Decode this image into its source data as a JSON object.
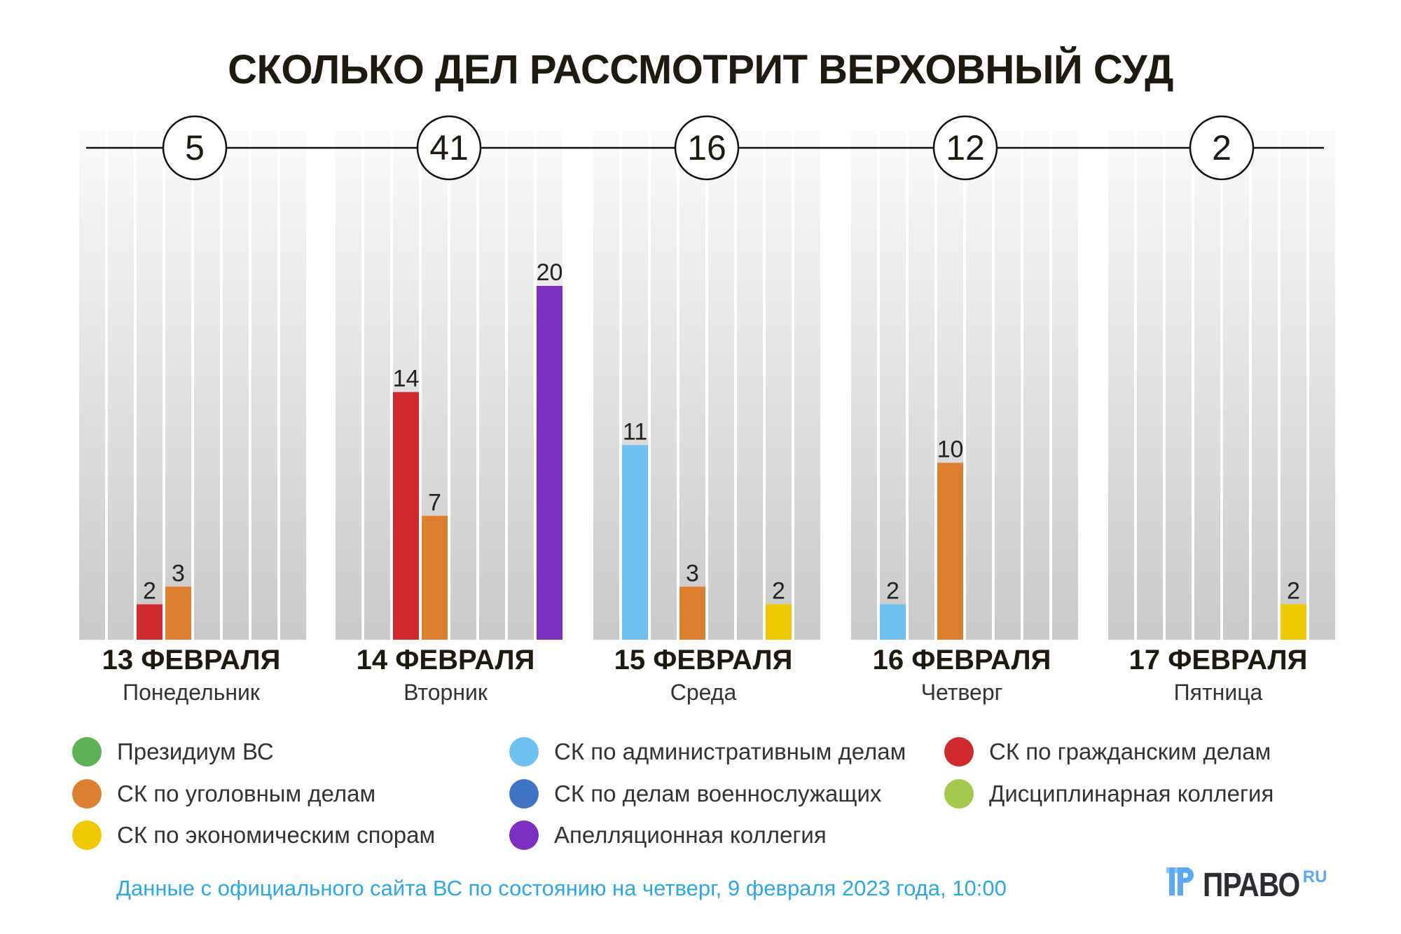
{
  "chart_data": {
    "type": "bar",
    "title": "СКОЛЬКО ДЕЛ РАССМОТРИТ ВЕРХОВНЫЙ СУД",
    "ylim": [
      0,
      20
    ],
    "categories": [
      {
        "date": "13 ФЕВРАЛЯ",
        "weekday": "Понедельник",
        "total": "5"
      },
      {
        "date": "14 ФЕВРАЛЯ",
        "weekday": "Вторник",
        "total": "41"
      },
      {
        "date": "15 ФЕВРАЛЯ",
        "weekday": "Среда",
        "total": "16"
      },
      {
        "date": "16 ФЕВРАЛЯ",
        "weekday": "Четверг",
        "total": "12"
      },
      {
        "date": "17 ФЕВРАЛЯ",
        "weekday": "Пятница",
        "total": "2"
      }
    ],
    "series": [
      {
        "name": "Президиум ВС",
        "color": "#5fb157",
        "values": [
          0,
          0,
          0,
          0,
          0
        ]
      },
      {
        "name": "СК по административным делам",
        "color": "#6ec1f0",
        "values": [
          0,
          0,
          11,
          2,
          0
        ]
      },
      {
        "name": "СК по гражданским делам",
        "color": "#d02a30",
        "values": [
          2,
          14,
          0,
          0,
          0
        ]
      },
      {
        "name": "СК по уголовным делам",
        "color": "#dc8030",
        "values": [
          3,
          7,
          3,
          10,
          0
        ]
      },
      {
        "name": "СК по делам военнослужащих",
        "color": "#3f74c4",
        "values": [
          0,
          0,
          0,
          0,
          0
        ]
      },
      {
        "name": "Дисциплинарная коллегия",
        "color": "#a3c94c",
        "values": [
          0,
          0,
          0,
          0,
          0
        ]
      },
      {
        "name": "СК по экономическим спорам",
        "color": "#eec900",
        "values": [
          0,
          0,
          2,
          0,
          2
        ]
      },
      {
        "name": "Апелляционная коллегия",
        "color": "#7d2fc2",
        "values": [
          0,
          20,
          0,
          0,
          0
        ]
      }
    ],
    "legend_order": [
      0,
      3,
      6,
      1,
      4,
      7,
      2,
      5
    ],
    "legend": "bottom"
  },
  "note": "Данные с официального сайта ВС по состоянию на четверг, 9 февраля 2023 года, 10:00",
  "logo": {
    "word": "ПРАВО",
    "suffix": "RU"
  }
}
